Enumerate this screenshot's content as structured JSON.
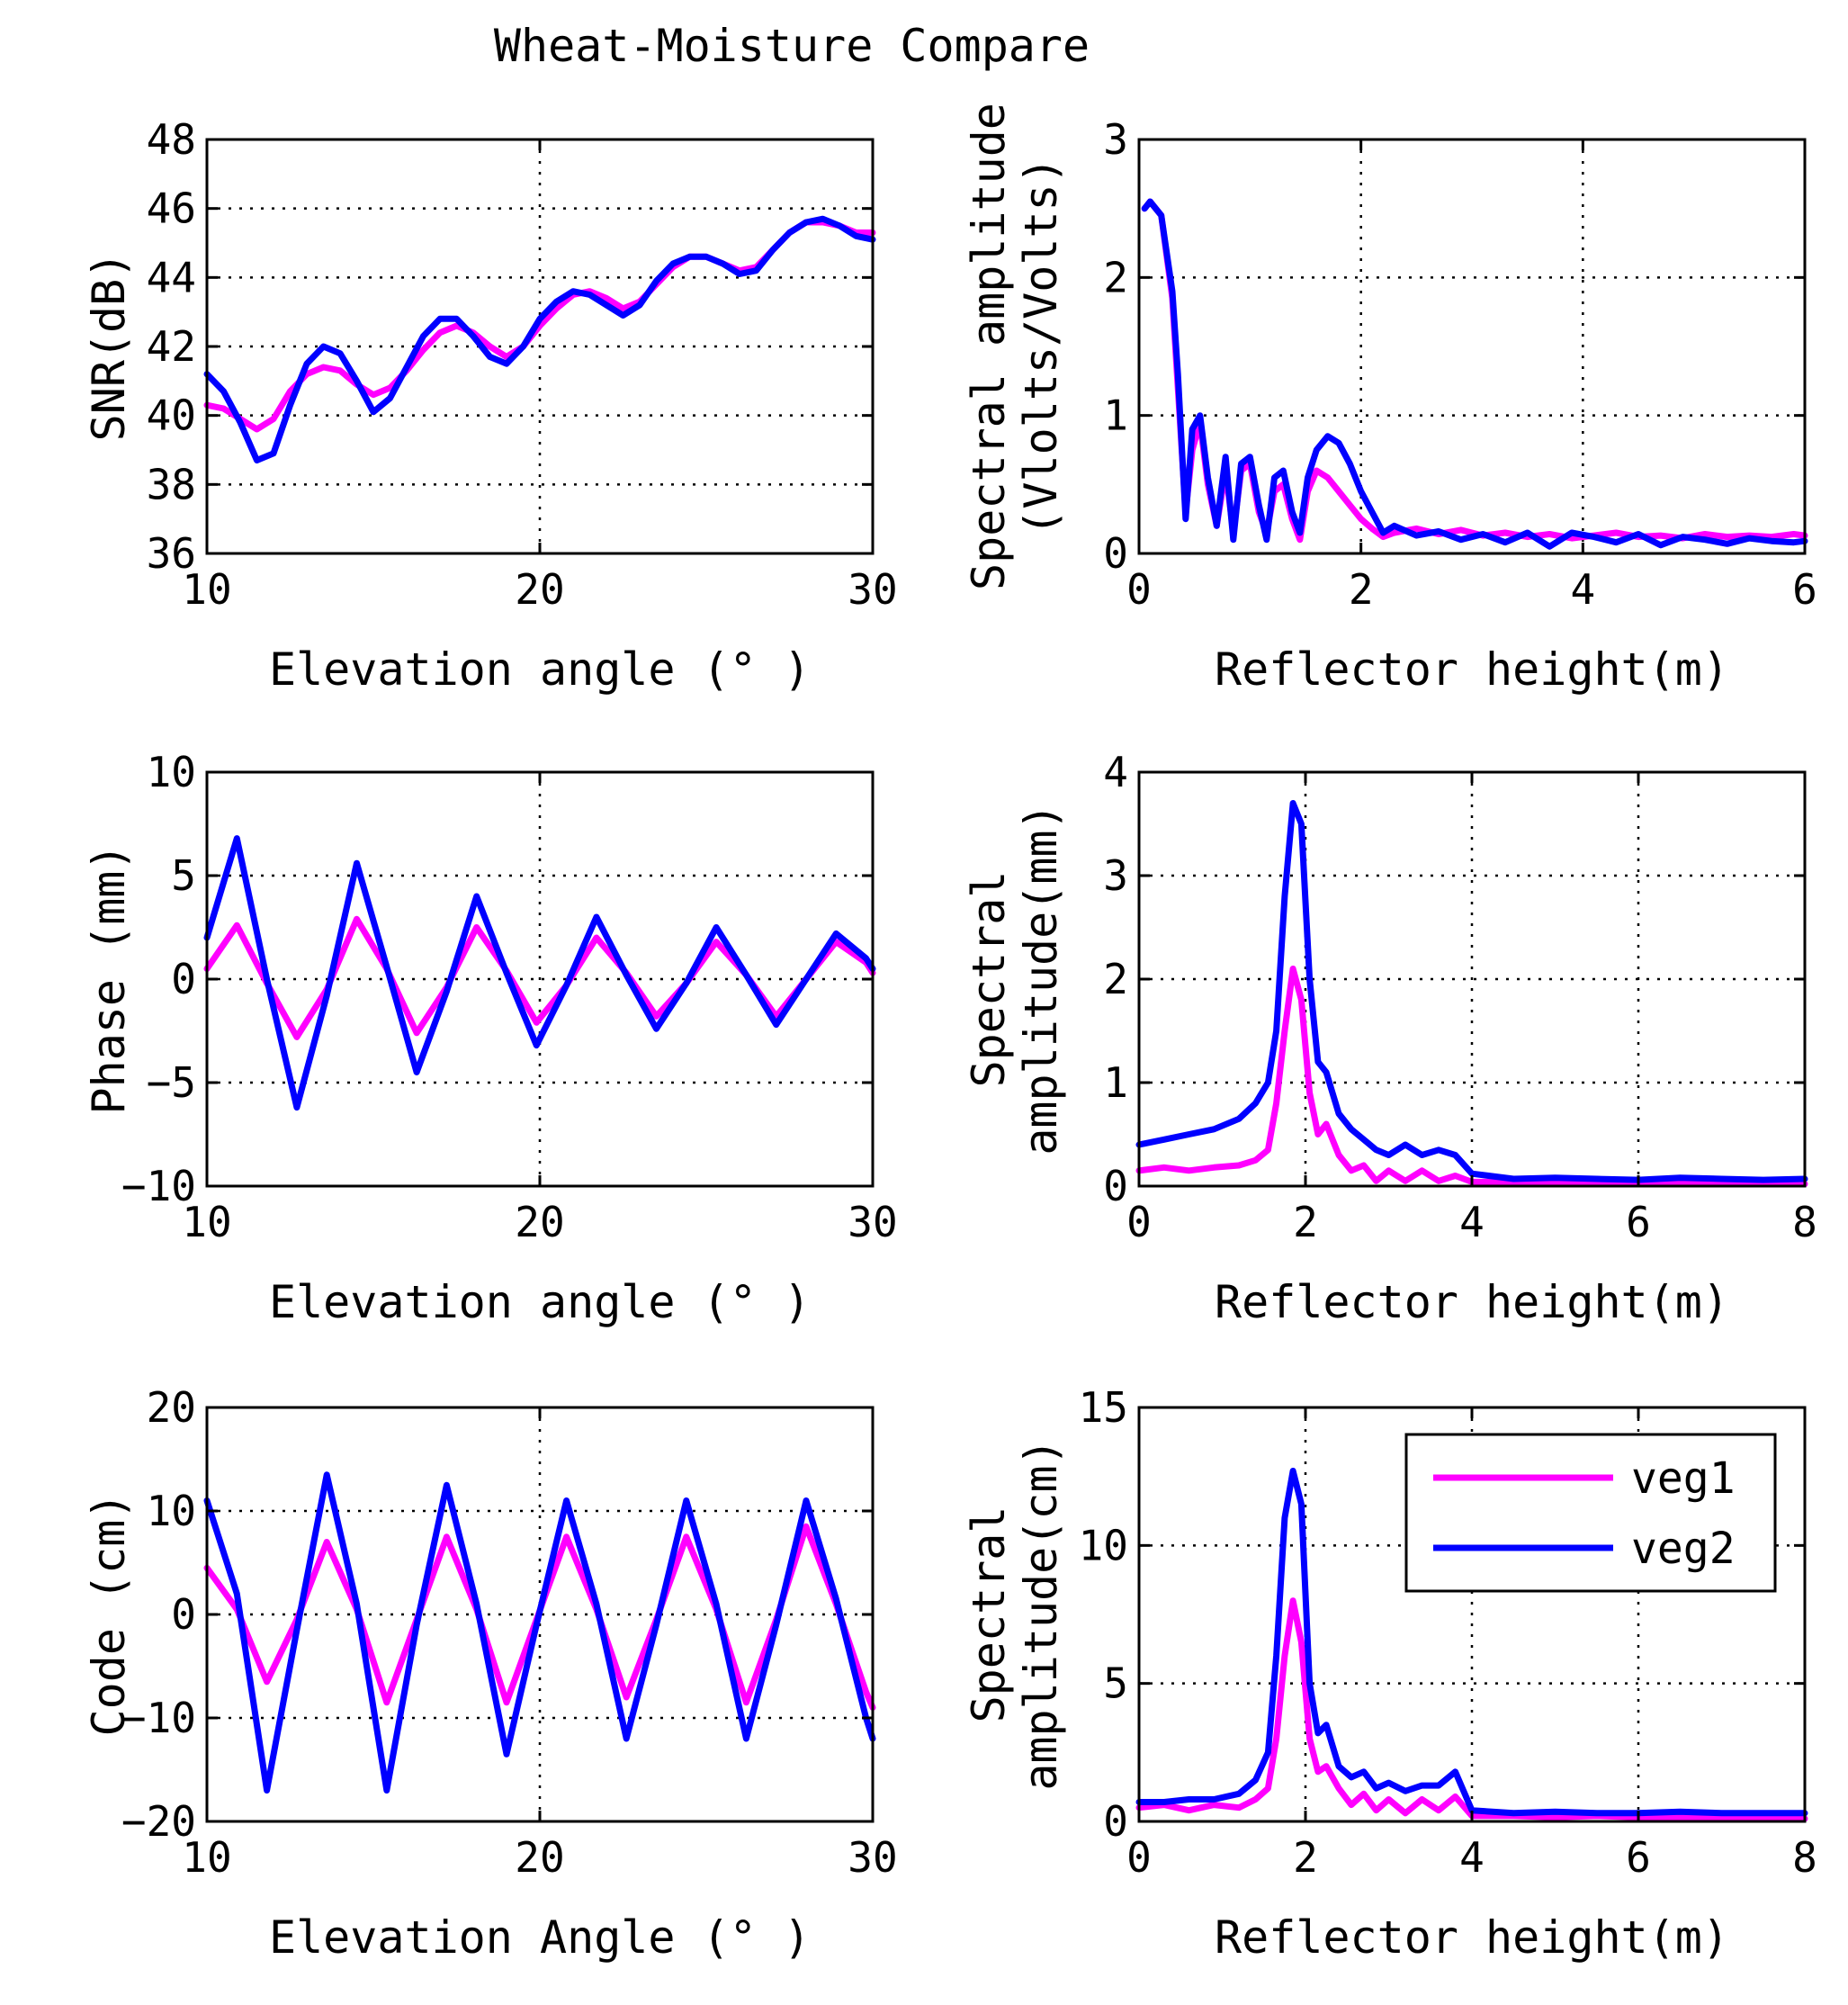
{
  "title": "Wheat-Moisture Compare",
  "legend": {
    "location": "top-right of bottom-right panel",
    "entries": [
      {
        "label": "veg1",
        "color": "#ff00ff"
      },
      {
        "label": "veg2",
        "color": "#0000ff"
      }
    ]
  },
  "chart_data": [
    {
      "id": "snr",
      "type": "line",
      "xlabel": "Elevation angle (° )",
      "ylabel": [
        "SNR(dB)"
      ],
      "xlim": [
        10,
        30
      ],
      "ylim": [
        36,
        48
      ],
      "xticks": [
        10,
        20,
        30
      ],
      "yticks": [
        36,
        38,
        40,
        42,
        44,
        46,
        48
      ],
      "grid": true,
      "series": [
        {
          "name": "veg1",
          "color": "#ff00ff",
          "x": [
            10,
            10.5,
            11,
            11.5,
            12,
            12.5,
            13,
            13.5,
            14,
            14.5,
            15,
            15.5,
            16,
            16.5,
            17,
            17.5,
            18,
            18.5,
            19,
            19.5,
            20,
            20.5,
            21,
            21.5,
            22,
            22.5,
            23,
            23.5,
            24,
            24.5,
            25,
            25.5,
            26,
            26.5,
            27,
            27.5,
            28,
            28.5,
            29,
            29.5,
            30
          ],
          "y": [
            40.3,
            40.2,
            39.9,
            39.6,
            39.9,
            40.7,
            41.2,
            41.4,
            41.3,
            40.9,
            40.6,
            40.8,
            41.3,
            41.9,
            42.4,
            42.6,
            42.4,
            42.0,
            41.7,
            42.0,
            42.6,
            43.1,
            43.5,
            43.6,
            43.4,
            43.1,
            43.3,
            43.8,
            44.3,
            44.6,
            44.6,
            44.4,
            44.2,
            44.3,
            44.8,
            45.3,
            45.6,
            45.6,
            45.5,
            45.3,
            45.3
          ]
        },
        {
          "name": "veg2",
          "color": "#0000ff",
          "x": [
            10,
            10.5,
            11,
            11.5,
            12,
            12.5,
            13,
            13.5,
            14,
            14.5,
            15,
            15.5,
            16,
            16.5,
            17,
            17.5,
            18,
            18.5,
            19,
            19.5,
            20,
            20.5,
            21,
            21.5,
            22,
            22.5,
            23,
            23.5,
            24,
            24.5,
            25,
            25.5,
            26,
            26.5,
            27,
            27.5,
            28,
            28.5,
            29,
            29.5,
            30
          ],
          "y": [
            41.2,
            40.7,
            39.8,
            38.7,
            38.9,
            40.3,
            41.5,
            42.0,
            41.8,
            41.0,
            40.1,
            40.5,
            41.4,
            42.3,
            42.8,
            42.8,
            42.3,
            41.7,
            41.5,
            42.0,
            42.8,
            43.3,
            43.6,
            43.5,
            43.2,
            42.9,
            43.2,
            43.9,
            44.4,
            44.6,
            44.6,
            44.4,
            44.1,
            44.2,
            44.8,
            45.3,
            45.6,
            45.7,
            45.5,
            45.2,
            45.1
          ]
        }
      ]
    },
    {
      "id": "snr-spectrum",
      "type": "line",
      "xlabel": "Reflector height(m)",
      "ylabel": [
        "Spectral amplitude",
        "(Vlolts/Volts)"
      ],
      "xlim": [
        0,
        6
      ],
      "ylim": [
        0,
        3
      ],
      "xticks": [
        0,
        2,
        4,
        6
      ],
      "yticks": [
        0,
        1,
        2,
        3
      ],
      "grid": true,
      "series": [
        {
          "name": "veg1",
          "color": "#ff00ff",
          "x": [
            0.05,
            0.1,
            0.2,
            0.3,
            0.35,
            0.42,
            0.48,
            0.55,
            0.62,
            0.7,
            0.78,
            0.85,
            0.92,
            1.0,
            1.08,
            1.15,
            1.22,
            1.3,
            1.38,
            1.45,
            1.52,
            1.6,
            1.7,
            1.8,
            1.9,
            2.0,
            2.1,
            2.2,
            2.3,
            2.5,
            2.7,
            2.9,
            3.1,
            3.3,
            3.5,
            3.7,
            3.9,
            4.1,
            4.3,
            4.5,
            4.7,
            4.9,
            5.1,
            5.3,
            5.5,
            5.7,
            5.9,
            6.0
          ],
          "y": [
            2.5,
            2.55,
            2.45,
            1.85,
            1.2,
            0.3,
            0.75,
            0.95,
            0.5,
            0.2,
            0.6,
            0.15,
            0.6,
            0.65,
            0.3,
            0.15,
            0.45,
            0.5,
            0.25,
            0.1,
            0.45,
            0.6,
            0.55,
            0.45,
            0.35,
            0.25,
            0.18,
            0.12,
            0.15,
            0.18,
            0.14,
            0.17,
            0.13,
            0.15,
            0.12,
            0.14,
            0.11,
            0.13,
            0.15,
            0.12,
            0.13,
            0.11,
            0.14,
            0.12,
            0.13,
            0.12,
            0.14,
            0.13
          ]
        },
        {
          "name": "veg2",
          "color": "#0000ff",
          "x": [
            0.05,
            0.1,
            0.2,
            0.3,
            0.35,
            0.42,
            0.48,
            0.55,
            0.62,
            0.7,
            0.78,
            0.85,
            0.92,
            1.0,
            1.08,
            1.15,
            1.22,
            1.3,
            1.38,
            1.45,
            1.52,
            1.6,
            1.7,
            1.8,
            1.9,
            2.0,
            2.1,
            2.2,
            2.3,
            2.5,
            2.7,
            2.9,
            3.1,
            3.3,
            3.5,
            3.7,
            3.9,
            4.1,
            4.3,
            4.5,
            4.7,
            4.9,
            5.1,
            5.3,
            5.5,
            5.7,
            5.9,
            6.0
          ],
          "y": [
            2.5,
            2.55,
            2.45,
            1.9,
            1.3,
            0.25,
            0.9,
            1.0,
            0.55,
            0.2,
            0.7,
            0.1,
            0.65,
            0.7,
            0.35,
            0.1,
            0.55,
            0.6,
            0.3,
            0.15,
            0.55,
            0.75,
            0.85,
            0.8,
            0.65,
            0.45,
            0.3,
            0.15,
            0.2,
            0.13,
            0.16,
            0.1,
            0.14,
            0.08,
            0.15,
            0.05,
            0.15,
            0.12,
            0.08,
            0.14,
            0.06,
            0.12,
            0.1,
            0.07,
            0.11,
            0.09,
            0.08,
            0.09
          ]
        }
      ]
    },
    {
      "id": "phase",
      "type": "line",
      "xlabel": "Elevation angle (° )",
      "ylabel": [
        "Phase (mm)"
      ],
      "xlim": [
        10,
        30
      ],
      "ylim": [
        -10,
        10
      ],
      "xticks": [
        10,
        20,
        30
      ],
      "yticks": [
        -10,
        -5,
        0,
        5,
        10
      ],
      "grid": true,
      "series": [
        {
          "name": "veg1",
          "color": "#ff00ff",
          "x": [
            10,
            10.9,
            11.8,
            12.7,
            13.6,
            14.5,
            15.4,
            16.3,
            17.2,
            18.1,
            19.0,
            19.9,
            20.8,
            21.7,
            22.6,
            23.5,
            24.4,
            25.3,
            26.2,
            27.1,
            28.0,
            28.9,
            29.8,
            30
          ],
          "y": [
            0.5,
            2.6,
            -0.2,
            -2.8,
            -0.5,
            2.9,
            0.5,
            -2.6,
            -0.4,
            2.5,
            0.4,
            -2.1,
            -0.3,
            2.0,
            0.3,
            -1.8,
            -0.2,
            1.8,
            0.2,
            -1.8,
            0.0,
            1.8,
            0.8,
            0.3
          ]
        },
        {
          "name": "veg2",
          "color": "#0000ff",
          "x": [
            10,
            10.9,
            11.8,
            12.7,
            13.6,
            14.5,
            15.4,
            16.3,
            17.2,
            18.1,
            19.0,
            19.9,
            20.8,
            21.7,
            22.6,
            23.5,
            24.4,
            25.3,
            26.2,
            27.1,
            28.0,
            28.9,
            29.8,
            30
          ],
          "y": [
            2.0,
            6.8,
            0.0,
            -6.2,
            -0.8,
            5.6,
            0.6,
            -4.5,
            -0.6,
            4.0,
            0.3,
            -3.2,
            -0.3,
            3.0,
            0.2,
            -2.4,
            -0.2,
            2.5,
            0.2,
            -2.2,
            0.0,
            2.2,
            1.0,
            0.5
          ]
        }
      ]
    },
    {
      "id": "phase-spectrum",
      "type": "line",
      "xlabel": "Reflector height(m)",
      "ylabel": [
        "Spectral",
        "amplitude(mm)"
      ],
      "xlim": [
        0,
        8
      ],
      "ylim": [
        0,
        4
      ],
      "xticks": [
        0,
        2,
        4,
        6,
        8
      ],
      "yticks": [
        0,
        1,
        2,
        3,
        4
      ],
      "grid": true,
      "series": [
        {
          "name": "veg1",
          "color": "#ff00ff",
          "x": [
            0,
            0.3,
            0.6,
            0.9,
            1.2,
            1.4,
            1.55,
            1.65,
            1.75,
            1.85,
            1.95,
            2.05,
            2.15,
            2.25,
            2.4,
            2.55,
            2.7,
            2.85,
            3.0,
            3.2,
            3.4,
            3.6,
            3.8,
            4.0,
            4.5,
            5.0,
            5.5,
            6.0,
            6.5,
            7.0,
            7.5,
            8.0
          ],
          "y": [
            0.15,
            0.18,
            0.15,
            0.18,
            0.2,
            0.25,
            0.35,
            0.8,
            1.5,
            2.1,
            1.8,
            0.9,
            0.5,
            0.6,
            0.3,
            0.15,
            0.2,
            0.05,
            0.15,
            0.05,
            0.15,
            0.05,
            0.1,
            0.04,
            0.04,
            0.03,
            0.04,
            0.03,
            0.03,
            0.02,
            0.03,
            0.02
          ]
        },
        {
          "name": "veg2",
          "color": "#0000ff",
          "x": [
            0,
            0.3,
            0.6,
            0.9,
            1.2,
            1.4,
            1.55,
            1.65,
            1.75,
            1.85,
            1.95,
            2.05,
            2.15,
            2.25,
            2.4,
            2.55,
            2.7,
            2.85,
            3.0,
            3.2,
            3.4,
            3.6,
            3.8,
            4.0,
            4.5,
            5.0,
            5.5,
            6.0,
            6.5,
            7.0,
            7.5,
            8.0
          ],
          "y": [
            0.4,
            0.45,
            0.5,
            0.55,
            0.65,
            0.8,
            1.0,
            1.5,
            2.8,
            3.7,
            3.5,
            2.0,
            1.2,
            1.1,
            0.7,
            0.55,
            0.45,
            0.35,
            0.3,
            0.4,
            0.3,
            0.35,
            0.3,
            0.12,
            0.07,
            0.08,
            0.07,
            0.06,
            0.08,
            0.07,
            0.06,
            0.07
          ]
        }
      ]
    },
    {
      "id": "code",
      "type": "line",
      "xlabel": "Elevation Angle (° )",
      "ylabel": [
        "Code (cm)"
      ],
      "xlim": [
        10,
        30
      ],
      "ylim": [
        -20,
        20
      ],
      "xticks": [
        10,
        20,
        30
      ],
      "yticks": [
        -20,
        -10,
        0,
        10,
        20
      ],
      "grid": true,
      "series": [
        {
          "name": "veg1",
          "color": "#ff00ff",
          "x": [
            10,
            10.9,
            11.8,
            12.7,
            13.6,
            14.5,
            15.4,
            16.3,
            17.2,
            18.1,
            19.0,
            19.9,
            20.8,
            21.7,
            22.6,
            23.5,
            24.4,
            25.3,
            26.2,
            27.1,
            28.0,
            28.9,
            29.8,
            30
          ],
          "y": [
            4.5,
            0.5,
            -6.5,
            -0.5,
            7.0,
            0.5,
            -8.5,
            -0.5,
            7.5,
            0.5,
            -8.5,
            -0.5,
            7.5,
            0.5,
            -8.0,
            -0.5,
            7.5,
            0.5,
            -8.5,
            -0.5,
            8.5,
            1.0,
            -7.5,
            -9.0
          ]
        },
        {
          "name": "veg2",
          "color": "#0000ff",
          "x": [
            10,
            10.9,
            11.8,
            12.7,
            13.6,
            14.5,
            15.4,
            16.3,
            17.2,
            18.1,
            19.0,
            19.9,
            20.8,
            21.7,
            22.6,
            23.5,
            24.4,
            25.3,
            26.2,
            27.1,
            28.0,
            28.9,
            29.8,
            30
          ],
          "y": [
            11.0,
            2.0,
            -17.0,
            -1.5,
            13.5,
            1.0,
            -17.0,
            -1.0,
            12.5,
            1.0,
            -13.5,
            -1.0,
            11.0,
            1.0,
            -12.0,
            -1.0,
            11.0,
            1.0,
            -12.0,
            -1.0,
            11.0,
            1.5,
            -10.0,
            -12.0
          ]
        }
      ]
    },
    {
      "id": "code-spectrum",
      "type": "line",
      "xlabel": "Reflector height(m)",
      "ylabel": [
        "Spectral",
        "amplitude(cm)"
      ],
      "xlim": [
        0,
        8
      ],
      "ylim": [
        0,
        15
      ],
      "xticks": [
        0,
        2,
        4,
        6,
        8
      ],
      "yticks": [
        0,
        5,
        10,
        15
      ],
      "grid": true,
      "series": [
        {
          "name": "veg1",
          "color": "#ff00ff",
          "x": [
            0,
            0.3,
            0.6,
            0.9,
            1.2,
            1.4,
            1.55,
            1.65,
            1.75,
            1.85,
            1.95,
            2.05,
            2.15,
            2.25,
            2.4,
            2.55,
            2.7,
            2.85,
            3.0,
            3.2,
            3.4,
            3.6,
            3.8,
            4.0,
            4.5,
            5.0,
            5.5,
            6.0,
            6.5,
            7.0,
            7.5,
            8.0
          ],
          "y": [
            0.5,
            0.6,
            0.4,
            0.6,
            0.5,
            0.8,
            1.2,
            3.0,
            6.0,
            8.0,
            6.5,
            3.0,
            1.8,
            2.0,
            1.2,
            0.6,
            1.0,
            0.4,
            0.8,
            0.3,
            0.8,
            0.4,
            0.9,
            0.2,
            0.2,
            0.15,
            0.2,
            0.15,
            0.15,
            0.1,
            0.15,
            0.1
          ]
        },
        {
          "name": "veg2",
          "color": "#0000ff",
          "x": [
            0,
            0.3,
            0.6,
            0.9,
            1.2,
            1.4,
            1.55,
            1.65,
            1.75,
            1.85,
            1.95,
            2.05,
            2.15,
            2.25,
            2.4,
            2.55,
            2.7,
            2.85,
            3.0,
            3.2,
            3.4,
            3.6,
            3.8,
            4.0,
            4.5,
            5.0,
            5.5,
            6.0,
            6.5,
            7.0,
            7.5,
            8.0
          ],
          "y": [
            0.7,
            0.7,
            0.8,
            0.8,
            1.0,
            1.5,
            2.5,
            6.0,
            11.0,
            12.7,
            11.5,
            5.0,
            3.2,
            3.5,
            2.0,
            1.6,
            1.8,
            1.2,
            1.4,
            1.1,
            1.3,
            1.3,
            1.8,
            0.4,
            0.3,
            0.35,
            0.3,
            0.3,
            0.35,
            0.3,
            0.3,
            0.3
          ]
        }
      ]
    }
  ]
}
